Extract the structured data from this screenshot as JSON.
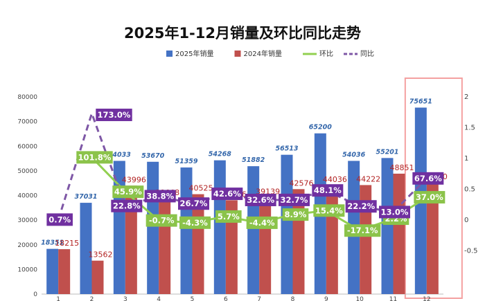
{
  "chart_data": {
    "type": "bar",
    "title": "2025年1-12月销量及环比同比走势",
    "categories": [
      "1",
      "2",
      "3",
      "4",
      "5",
      "6",
      "7",
      "8",
      "9",
      "10",
      "11",
      "12"
    ],
    "y_left": {
      "min": 0,
      "max": 80000,
      "ticks": [
        "0",
        "10000",
        "20000",
        "30000",
        "40000",
        "50000",
        "60000",
        "70000",
        "80000"
      ]
    },
    "y_right": {
      "min": -0.5,
      "max": 2,
      "ticks": [
        "-0.5",
        "0",
        "0.5",
        "1",
        "1.5",
        "2"
      ]
    },
    "series": [
      {
        "name": "2025年销量",
        "kind": "bar",
        "axis": "left",
        "color": "#4472C4",
        "values": [
          18351,
          37031,
          54033,
          53670,
          51359,
          54268,
          51882,
          56513,
          65200,
          54036,
          55201,
          75651
        ],
        "labels": [
          "18351",
          "37031",
          "54033",
          "53670",
          "51359",
          "54268",
          "51882",
          "56513",
          "65200",
          "54036",
          "55201",
          "75651"
        ]
      },
      {
        "name": "2024年销量",
        "kind": "bar",
        "axis": "left",
        "color": "#C0504D",
        "values": [
          18215,
          13562,
          43996,
          38668,
          40525,
          38056,
          39139,
          42576,
          44036,
          44222,
          48851,
          45130
        ],
        "labels": [
          "18215",
          "13562",
          "43996",
          "38668",
          "40525",
          "38056",
          "39139",
          "42576",
          "44036",
          "44222",
          "48851",
          "45130"
        ]
      },
      {
        "name": "环比",
        "kind": "line",
        "axis": "right",
        "color": "#92D050",
        "values": [
          null,
          1.018,
          0.459,
          -0.007,
          -0.043,
          0.057,
          -0.044,
          0.089,
          0.154,
          -0.171,
          0.022,
          0.37
        ],
        "labels": [
          "",
          "101.8%",
          "45.9%",
          "-0.7%",
          "-4.3%",
          "5.7%",
          "-4.4%",
          "8.9%",
          "15.4%",
          "-17.1%",
          "2.2%",
          "37.0%"
        ]
      },
      {
        "name": "同比",
        "kind": "line",
        "axis": "right",
        "color": "#7E57A6",
        "values": [
          0.007,
          1.73,
          0.228,
          0.388,
          0.267,
          0.426,
          0.326,
          0.327,
          0.481,
          0.222,
          0.13,
          0.676
        ],
        "labels": [
          "0.7%",
          "173.0%",
          "22.8%",
          "38.8%",
          "26.7%",
          "42.6%",
          "32.6%",
          "32.7%",
          "48.1%",
          "22.2%",
          "13.0%",
          "67.6%"
        ]
      }
    ],
    "legend_position": "top",
    "grid": false,
    "highlight": {
      "category": "12",
      "color": "#F4A0A0"
    }
  }
}
